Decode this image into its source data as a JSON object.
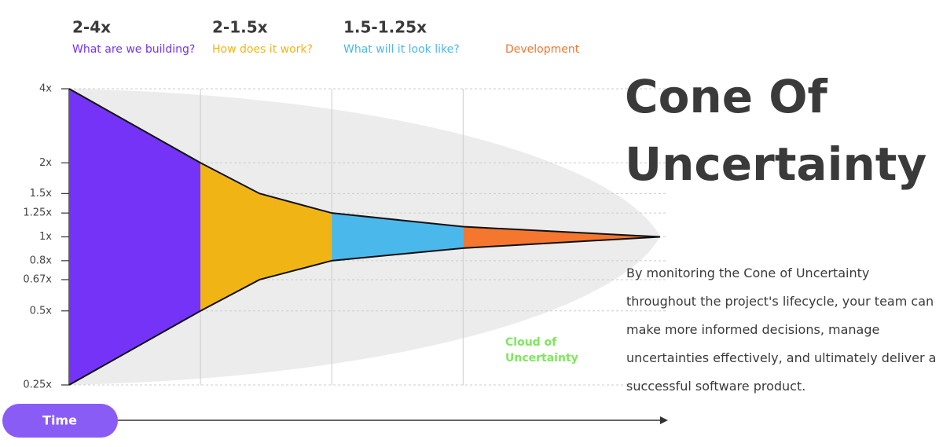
{
  "chart_data": {
    "type": "cone",
    "title": "Cone Of Uncertainty",
    "description": "By monitoring the Cone of Uncertainty throughout the project's lifecycle, your team can make more informed decisions, manage uncertainties effectively, and ultimately deliver a successful software product.",
    "annotation": "Cloud of Uncertainty",
    "xlabel": "Time",
    "phases": [
      {
        "range": "2-4x",
        "label": "What are we building?",
        "color": "#7433f7"
      },
      {
        "range": "2-1.5x",
        "label": "How does it work?",
        "color": "#f0b515"
      },
      {
        "range": "1.5-1.25x",
        "label": "What will it look like?",
        "color": "#4bb8ec"
      },
      {
        "label": "Development",
        "color": "#f4762f"
      }
    ],
    "x": [
      0,
      1,
      1.45,
      2,
      3,
      4.5
    ],
    "upper": [
      4,
      2,
      1.5,
      1.25,
      1.1,
      1
    ],
    "lower": [
      0.25,
      0.5,
      0.67,
      0.8,
      0.9,
      1
    ],
    "xlim": [
      0,
      4.5
    ],
    "xticks": [
      1,
      2,
      3
    ],
    "ylog": true,
    "ylim": [
      0.25,
      4
    ],
    "yticks": [
      {
        "value": 0.25,
        "label": "0.25x"
      },
      {
        "value": 0.5,
        "label": "0.5x"
      },
      {
        "value": 0.67,
        "label": "0.67x"
      },
      {
        "value": 0.8,
        "label": "0.8x"
      },
      {
        "value": 1,
        "label": "1x"
      },
      {
        "value": 1.25,
        "label": "1.25x"
      },
      {
        "value": 1.5,
        "label": "1.5x"
      },
      {
        "value": 2,
        "label": "2x"
      },
      {
        "value": 4,
        "label": "4x"
      }
    ],
    "grid": true
  }
}
